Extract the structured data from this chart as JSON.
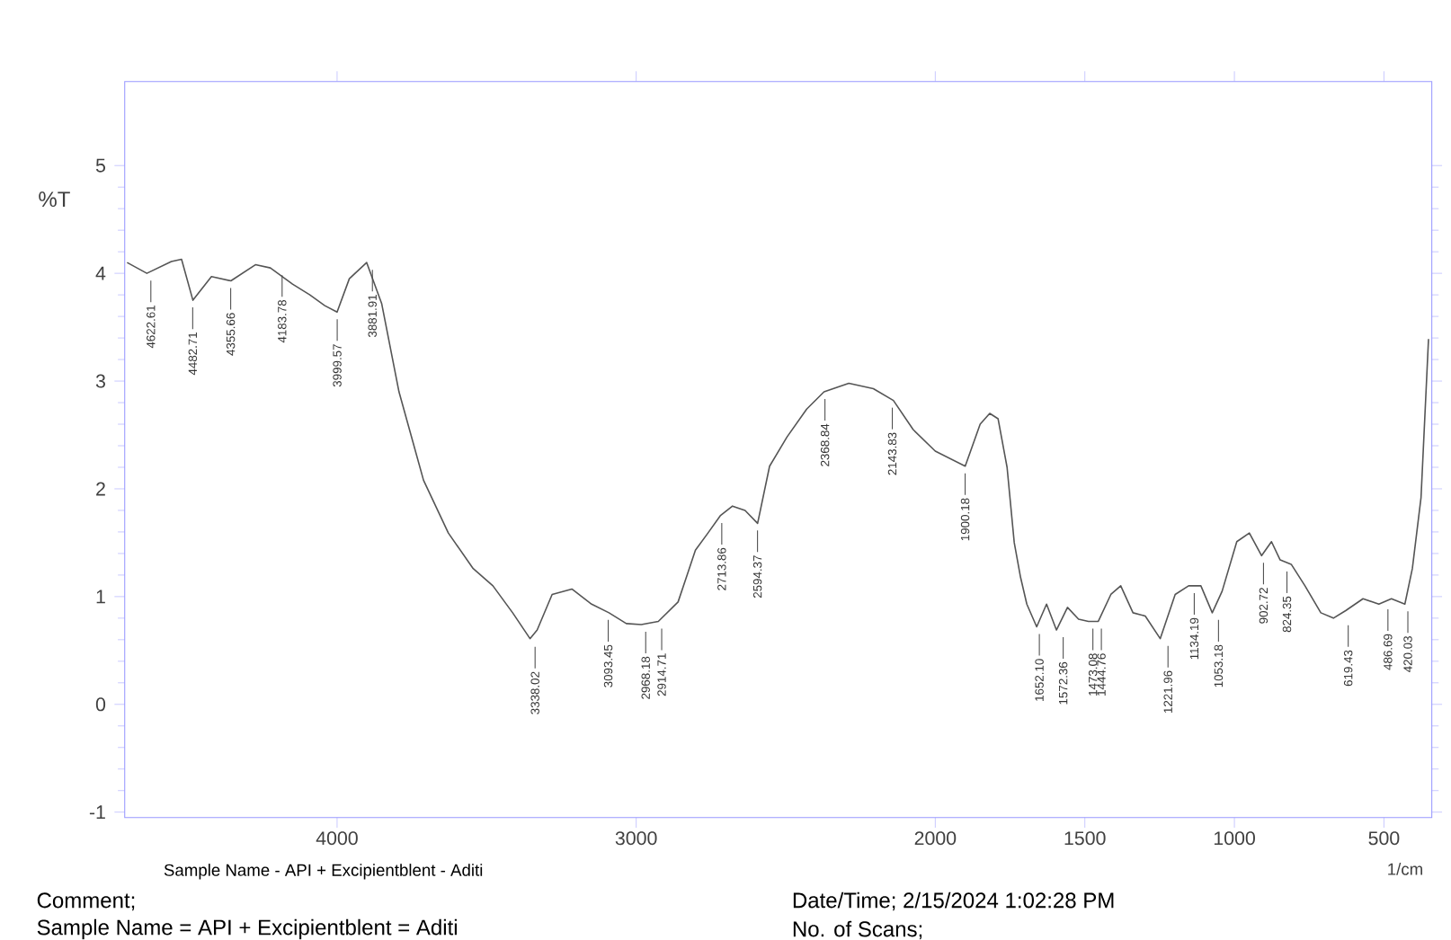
{
  "chart_data": {
    "type": "line",
    "xlabel": "1/cm",
    "ylabel": "%T",
    "xlim": [
      4710,
      340
    ],
    "ylim": [
      -1.05,
      5.78
    ],
    "xticks": [
      4000,
      3000,
      2000,
      1500,
      1000,
      500
    ],
    "yticks": [
      -1,
      0,
      1,
      2,
      3,
      4,
      5
    ],
    "series": [
      {
        "color": "#555555",
        "x": [
          4702,
          4636,
          4554,
          4520,
          4482,
          4420,
          4355,
          4273,
          4223,
          4149,
          4091,
          4041,
          4000,
          3959,
          3901,
          3851,
          3793,
          3711,
          3628,
          3545,
          3479,
          3413,
          3355,
          3331,
          3281,
          3215,
          3149,
          3091,
          3033,
          2983,
          2926,
          2860,
          2802,
          2760,
          2719,
          2678,
          2636,
          2594,
          2554,
          2496,
          2430,
          2372,
          2289,
          2207,
          2140,
          2074,
          2000,
          1900,
          1850,
          1818,
          1790,
          1760,
          1736,
          1715,
          1694,
          1661,
          1628,
          1595,
          1558,
          1521,
          1488,
          1455,
          1413,
          1380,
          1339,
          1298,
          1248,
          1198,
          1153,
          1112,
          1074,
          1041,
          992,
          950,
          909,
          876,
          847,
          810,
          764,
          711,
          669,
          628,
          570,
          517,
          475,
          430,
          405,
          376,
          351
        ],
        "values": [
          4.1,
          4.0,
          4.11,
          4.13,
          3.75,
          3.97,
          3.93,
          4.08,
          4.05,
          3.9,
          3.8,
          3.7,
          3.64,
          3.95,
          4.1,
          3.72,
          2.9,
          2.08,
          1.59,
          1.26,
          1.1,
          0.85,
          0.61,
          0.69,
          1.02,
          1.07,
          0.93,
          0.85,
          0.75,
          0.74,
          0.77,
          0.95,
          1.43,
          1.59,
          1.75,
          1.84,
          1.8,
          1.68,
          2.21,
          2.48,
          2.74,
          2.9,
          2.98,
          2.93,
          2.82,
          2.55,
          2.35,
          2.21,
          2.6,
          2.7,
          2.65,
          2.2,
          1.5,
          1.18,
          0.93,
          0.72,
          0.93,
          0.69,
          0.9,
          0.79,
          0.77,
          0.77,
          1.02,
          1.1,
          0.85,
          0.82,
          0.61,
          1.02,
          1.1,
          1.1,
          0.85,
          1.05,
          1.51,
          1.59,
          1.38,
          1.51,
          1.34,
          1.3,
          1.1,
          0.85,
          0.8,
          0.87,
          0.98,
          0.93,
          0.98,
          0.93,
          1.26,
          1.92,
          3.39
        ]
      }
    ],
    "annotations": [
      {
        "text": "4622.61",
        "x": 4622.61,
        "y": 4.0
      },
      {
        "text": "4482.71",
        "x": 4482.71,
        "y": 3.75
      },
      {
        "text": "4355.66",
        "x": 4355.66,
        "y": 3.93
      },
      {
        "text": "4183.78",
        "x": 4183.78,
        "y": 4.05
      },
      {
        "text": "3999.57",
        "x": 3999.57,
        "y": 3.64
      },
      {
        "text": "3881.91",
        "x": 3881.91,
        "y": 4.1
      },
      {
        "text": "3338.02",
        "x": 3338.02,
        "y": 0.6
      },
      {
        "text": "3093.45",
        "x": 3093.45,
        "y": 0.85
      },
      {
        "text": "2968.18",
        "x": 2968.18,
        "y": 0.74
      },
      {
        "text": "2914.71",
        "x": 2914.71,
        "y": 0.77
      },
      {
        "text": "2713.86",
        "x": 2713.86,
        "y": 1.75
      },
      {
        "text": "2594.37",
        "x": 2594.37,
        "y": 1.68
      },
      {
        "text": "2368.84",
        "x": 2368.84,
        "y": 2.9
      },
      {
        "text": "2143.83",
        "x": 2143.83,
        "y": 2.82
      },
      {
        "text": "1900.18",
        "x": 1900.18,
        "y": 2.21
      },
      {
        "text": "1652.10",
        "x": 1652.1,
        "y": 0.72
      },
      {
        "text": "1572.36",
        "x": 1572.36,
        "y": 0.69
      },
      {
        "text": "1473.08",
        "x": 1473.08,
        "y": 0.77
      },
      {
        "text": "1444.76",
        "x": 1444.76,
        "y": 0.77
      },
      {
        "text": "1221.96",
        "x": 1221.96,
        "y": 0.61
      },
      {
        "text": "1134.19",
        "x": 1134.19,
        "y": 1.1
      },
      {
        "text": "1053.18",
        "x": 1053.18,
        "y": 0.85
      },
      {
        "text": "902.72",
        "x": 902.72,
        "y": 1.38
      },
      {
        "text": "824.35",
        "x": 824.35,
        "y": 1.3
      },
      {
        "text": "619.43",
        "x": 619.43,
        "y": 0.8
      },
      {
        "text": "486.69",
        "x": 486.69,
        "y": 0.95
      },
      {
        "text": "420.03",
        "x": 420.03,
        "y": 0.93
      },
      "Sample Name - API + Excipientblent - Aditi",
      "Comment;",
      "Sample Name = API + Excipientblent = Aditi",
      "Date/Time;   2/15/2024 1:02:28 PM",
      "No. of Scans;"
    ]
  }
}
